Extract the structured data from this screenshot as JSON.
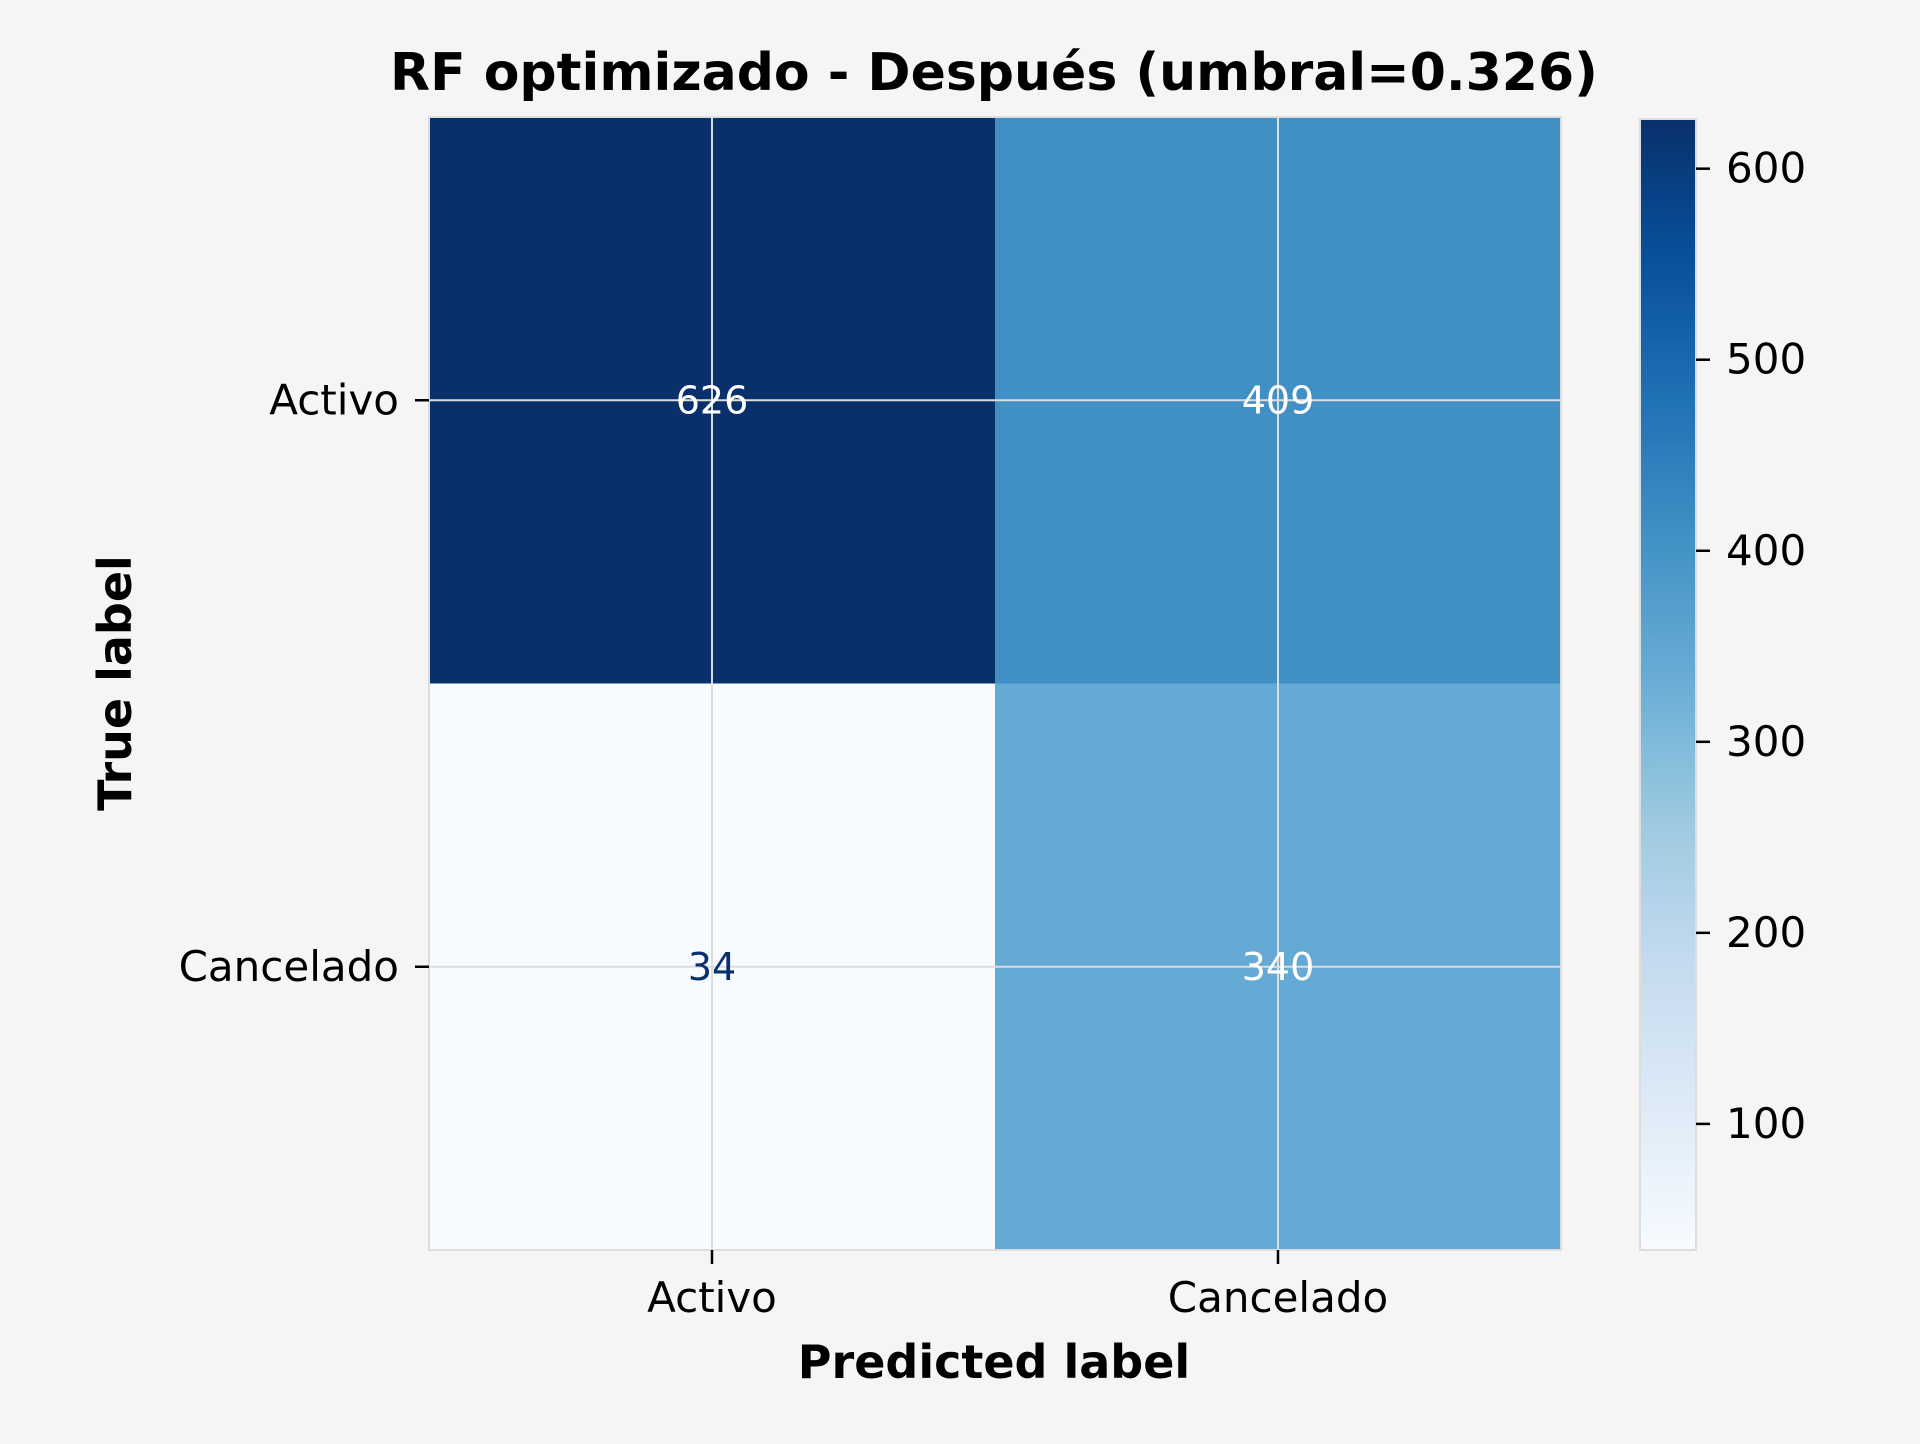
{
  "chart_data": {
    "type": "heatmap",
    "title": "RF optimizado - Después (umbral=0.326)",
    "xlabel": "Predicted label",
    "ylabel": "True label",
    "x_categories": [
      "Activo",
      "Cancelado"
    ],
    "y_categories": [
      "Activo",
      "Cancelado"
    ],
    "matrix": [
      [
        626,
        409
      ],
      [
        34,
        340
      ]
    ],
    "colormap": "Blues",
    "colorbar": {
      "ticks": [
        100,
        200,
        300,
        400,
        500,
        600
      ],
      "range": [
        34,
        626
      ]
    },
    "grid": true
  },
  "colors": {
    "background": "#f5f5f5",
    "grid": "#dddddd",
    "text_dark": "#000000",
    "text_light": "#ffffff",
    "text_on_light_cell": "#08306b"
  }
}
